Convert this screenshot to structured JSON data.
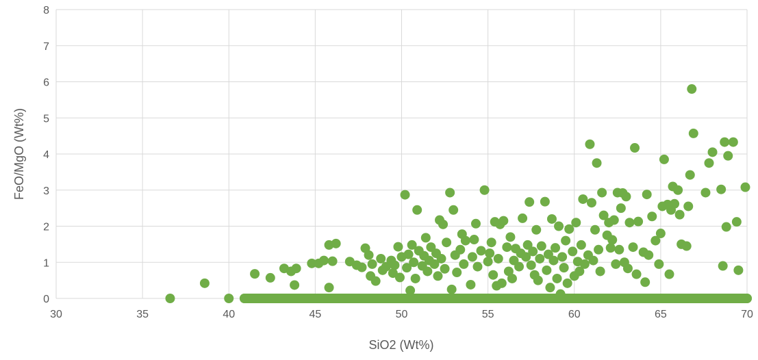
{
  "chart_data": {
    "type": "scatter",
    "title": "",
    "xlabel": "SiO2 (Wt%)",
    "ylabel": "FeO/MgO (Wt%)",
    "xlim": [
      30,
      70
    ],
    "ylim": [
      0,
      8
    ],
    "xticks": [
      30,
      35,
      40,
      45,
      50,
      55,
      60,
      65,
      70
    ],
    "yticks": [
      0,
      1,
      2,
      3,
      4,
      5,
      6,
      7,
      8
    ],
    "grid": true,
    "legend": "none",
    "marker_color": "#70AD47",
    "gridline_color": "#D9D9D9",
    "series": [
      {
        "points": [
          [
            36.6,
            0.0
          ],
          [
            38.6,
            0.42
          ],
          [
            40.0,
            0.0
          ],
          [
            40.9,
            0.0
          ],
          [
            41.5,
            0.68
          ],
          [
            41.5,
            0.0
          ],
          [
            42.0,
            0.0
          ],
          [
            42.4,
            0.57
          ],
          [
            42.6,
            0.0
          ],
          [
            43.1,
            0.0
          ],
          [
            43.2,
            0.83
          ],
          [
            43.5,
            0.0
          ],
          [
            43.6,
            0.75
          ],
          [
            43.8,
            0.37
          ],
          [
            43.9,
            0.83
          ],
          [
            44.2,
            0.0
          ],
          [
            44.6,
            0.0
          ],
          [
            44.8,
            0.97
          ],
          [
            45.2,
            0.97
          ],
          [
            45.4,
            0.0
          ],
          [
            45.5,
            1.05
          ],
          [
            45.8,
            0.3
          ],
          [
            45.8,
            1.48
          ],
          [
            45.9,
            0.0
          ],
          [
            46.0,
            1.03
          ],
          [
            46.2,
            1.52
          ],
          [
            46.6,
            0.0
          ],
          [
            47.0,
            1.02
          ],
          [
            47.1,
            0.0
          ],
          [
            47.4,
            0.92
          ],
          [
            47.7,
            0.86
          ],
          [
            47.9,
            1.39
          ],
          [
            48.0,
            0.0
          ],
          [
            48.1,
            1.2
          ],
          [
            48.2,
            0.62
          ],
          [
            48.3,
            0.95
          ],
          [
            48.5,
            0.48
          ],
          [
            48.6,
            0.0
          ],
          [
            48.8,
            1.1
          ],
          [
            48.9,
            0.78
          ],
          [
            49.1,
            0.88
          ],
          [
            49.3,
            0.0
          ],
          [
            49.4,
            1.05
          ],
          [
            49.5,
            0.7
          ],
          [
            49.6,
            0.92
          ],
          [
            49.8,
            1.43
          ],
          [
            49.9,
            0.58
          ],
          [
            50.0,
            1.15
          ],
          [
            50.1,
            0.0
          ],
          [
            50.2,
            2.87
          ],
          [
            50.3,
            0.85
          ],
          [
            50.4,
            1.22
          ],
          [
            50.5,
            0.22
          ],
          [
            50.6,
            1.48
          ],
          [
            50.7,
            1.0
          ],
          [
            50.8,
            0.55
          ],
          [
            50.9,
            2.45
          ],
          [
            51.0,
            1.32
          ],
          [
            51.1,
            0.0
          ],
          [
            51.2,
            0.9
          ],
          [
            51.3,
            1.18
          ],
          [
            51.4,
            1.68
          ],
          [
            51.5,
            0.75
          ],
          [
            51.6,
            1.05
          ],
          [
            51.7,
            1.42
          ],
          [
            51.8,
            0.0
          ],
          [
            51.9,
            0.95
          ],
          [
            52.0,
            1.25
          ],
          [
            52.1,
            0.62
          ],
          [
            52.2,
            2.17
          ],
          [
            52.3,
            1.1
          ],
          [
            52.4,
            2.05
          ],
          [
            52.5,
            0.82
          ],
          [
            52.6,
            1.55
          ],
          [
            52.7,
            0.0
          ],
          [
            52.8,
            2.93
          ],
          [
            52.9,
            0.25
          ],
          [
            53.0,
            2.45
          ],
          [
            53.1,
            1.2
          ],
          [
            53.2,
            0.72
          ],
          [
            53.4,
            1.35
          ],
          [
            53.5,
            1.78
          ],
          [
            53.6,
            0.95
          ],
          [
            53.7,
            1.6
          ],
          [
            53.9,
            0.0
          ],
          [
            54.0,
            0.38
          ],
          [
            54.1,
            1.15
          ],
          [
            54.2,
            1.63
          ],
          [
            54.3,
            2.07
          ],
          [
            54.4,
            0.88
          ],
          [
            54.6,
            1.32
          ],
          [
            54.8,
            3.0
          ],
          [
            54.9,
            0.0
          ],
          [
            55.0,
            1.02
          ],
          [
            55.1,
            1.25
          ],
          [
            55.2,
            1.55
          ],
          [
            55.3,
            0.65
          ],
          [
            55.4,
            2.12
          ],
          [
            55.5,
            0.35
          ],
          [
            55.6,
            1.1
          ],
          [
            55.7,
            2.05
          ],
          [
            55.8,
            0.42
          ],
          [
            55.9,
            2.15
          ],
          [
            56.0,
            0.0
          ],
          [
            56.1,
            1.42
          ],
          [
            56.2,
            0.75
          ],
          [
            56.3,
            1.7
          ],
          [
            56.4,
            0.55
          ],
          [
            56.5,
            1.05
          ],
          [
            56.6,
            1.38
          ],
          [
            56.8,
            0.88
          ],
          [
            56.9,
            1.25
          ],
          [
            57.0,
            2.22
          ],
          [
            57.1,
            0.0
          ],
          [
            57.2,
            1.15
          ],
          [
            57.3,
            1.48
          ],
          [
            57.4,
            2.67
          ],
          [
            57.5,
            0.92
          ],
          [
            57.6,
            1.3
          ],
          [
            57.7,
            0.65
          ],
          [
            57.8,
            1.9
          ],
          [
            57.9,
            0.5
          ],
          [
            58.0,
            1.1
          ],
          [
            58.1,
            1.45
          ],
          [
            58.2,
            0.0
          ],
          [
            58.3,
            2.68
          ],
          [
            58.4,
            0.78
          ],
          [
            58.5,
            1.22
          ],
          [
            58.6,
            0.3
          ],
          [
            58.7,
            2.2
          ],
          [
            58.8,
            1.05
          ],
          [
            58.9,
            1.4
          ],
          [
            59.0,
            0.55
          ],
          [
            59.1,
            2.0
          ],
          [
            59.2,
            0.12
          ],
          [
            59.3,
            1.15
          ],
          [
            59.4,
            0.85
          ],
          [
            59.5,
            1.6
          ],
          [
            59.6,
            0.42
          ],
          [
            59.7,
            1.92
          ],
          [
            59.8,
            0.0
          ],
          [
            59.9,
            1.3
          ],
          [
            60.0,
            0.62
          ],
          [
            60.1,
            2.1
          ],
          [
            60.2,
            1.02
          ],
          [
            60.3,
            0.75
          ],
          [
            60.4,
            1.48
          ],
          [
            60.5,
            2.75
          ],
          [
            60.6,
            0.95
          ],
          [
            60.7,
            0.0
          ],
          [
            60.8,
            1.2
          ],
          [
            60.9,
            4.27
          ],
          [
            61.0,
            2.65
          ],
          [
            61.1,
            1.05
          ],
          [
            61.2,
            1.9
          ],
          [
            61.3,
            3.75
          ],
          [
            61.4,
            1.35
          ],
          [
            61.5,
            0.75
          ],
          [
            61.6,
            2.93
          ],
          [
            61.7,
            2.3
          ],
          [
            61.8,
            0.0
          ],
          [
            61.9,
            1.75
          ],
          [
            62.0,
            2.1
          ],
          [
            62.1,
            1.4
          ],
          [
            62.2,
            1.62
          ],
          [
            62.3,
            2.17
          ],
          [
            62.4,
            0.95
          ],
          [
            62.5,
            2.93
          ],
          [
            62.6,
            1.35
          ],
          [
            62.7,
            2.5
          ],
          [
            62.8,
            2.92
          ],
          [
            62.9,
            1.0
          ],
          [
            63.0,
            2.82
          ],
          [
            63.1,
            0.83
          ],
          [
            63.2,
            2.1
          ],
          [
            63.3,
            0.0
          ],
          [
            63.4,
            1.42
          ],
          [
            63.5,
            4.17
          ],
          [
            63.6,
            0.67
          ],
          [
            63.7,
            2.13
          ],
          [
            63.8,
            0.0
          ],
          [
            64.0,
            1.28
          ],
          [
            64.1,
            0.45
          ],
          [
            64.2,
            2.88
          ],
          [
            64.3,
            1.2
          ],
          [
            64.5,
            2.27
          ],
          [
            64.7,
            1.6
          ],
          [
            64.8,
            0.0
          ],
          [
            64.9,
            0.95
          ],
          [
            65.0,
            1.8
          ],
          [
            65.1,
            2.55
          ],
          [
            65.2,
            3.85
          ],
          [
            65.4,
            2.6
          ],
          [
            65.5,
            0.67
          ],
          [
            65.6,
            2.45
          ],
          [
            65.7,
            3.1
          ],
          [
            65.8,
            2.62
          ],
          [
            66.0,
            3.0
          ],
          [
            66.1,
            2.32
          ],
          [
            66.2,
            1.5
          ],
          [
            66.4,
            0.0
          ],
          [
            66.5,
            1.45
          ],
          [
            66.6,
            2.55
          ],
          [
            66.7,
            3.42
          ],
          [
            66.8,
            5.8
          ],
          [
            66.9,
            4.57
          ],
          [
            67.0,
            0.0
          ],
          [
            67.3,
            0.0
          ],
          [
            67.6,
            2.93
          ],
          [
            67.8,
            3.75
          ],
          [
            68.0,
            4.05
          ],
          [
            68.2,
            0.0
          ],
          [
            68.5,
            3.02
          ],
          [
            68.6,
            0.9
          ],
          [
            68.7,
            4.33
          ],
          [
            68.8,
            1.98
          ],
          [
            68.9,
            3.95
          ],
          [
            69.0,
            0.0
          ],
          [
            69.2,
            4.33
          ],
          [
            69.4,
            2.12
          ],
          [
            69.5,
            0.78
          ],
          [
            69.7,
            0.0
          ],
          [
            69.9,
            3.08
          ],
          [
            70.0,
            0.0
          ]
        ]
      }
    ]
  }
}
